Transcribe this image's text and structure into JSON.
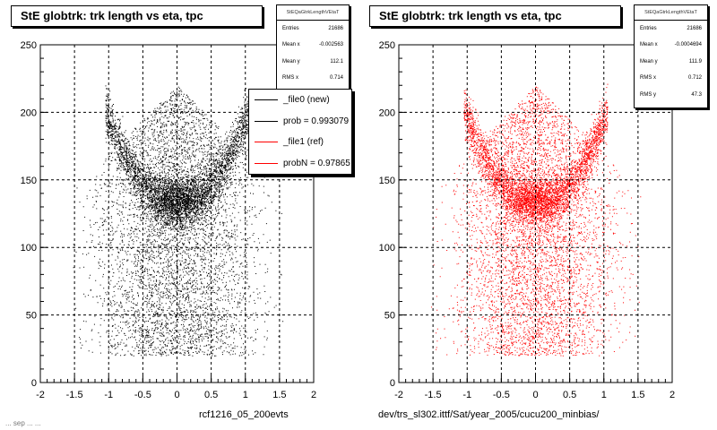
{
  "colors": {
    "series_new": "#000000",
    "series_ref": "#ff0000"
  },
  "panels": [
    {
      "title": "StE globtrk: trk length vs eta, tpc",
      "stats": {
        "header": "StEQaGtrkLengthVEtaT",
        "rows": [
          {
            "label": "Entries",
            "value": "21686"
          },
          {
            "label": "Mean x",
            "value": "-0.002563"
          },
          {
            "label": "Mean y",
            "value": "112.1"
          },
          {
            "label": "RMS x",
            "value": "0.714"
          }
        ]
      },
      "legend": [
        {
          "label": "_file0 (new)",
          "color": "#000000"
        },
        {
          "label": "prob = 0.993079",
          "color": "#000000"
        },
        {
          "label": "_file1 (ref)",
          "color": "#ff0000"
        },
        {
          "label": "probN = 0.97865",
          "color": "#ff0000"
        }
      ],
      "footer": "rcf1216_05_200evts",
      "footer_left": "... sep ... ...",
      "point_color": "#000000"
    },
    {
      "title": "StE globtrk: trk length vs eta, tpc",
      "stats": {
        "header": "StEQaGtrkLengthVEtaT",
        "rows": [
          {
            "label": "Entries",
            "value": "21686"
          },
          {
            "label": "Mean x",
            "value": "-0.0004694"
          },
          {
            "label": "Mean y",
            "value": "111.9"
          },
          {
            "label": "RMS x",
            "value": "0.712"
          },
          {
            "label": "RMS y",
            "value": "47.3"
          }
        ]
      },
      "footer": "dev/trs_sl302.ittf/Sat/year_2005/cucu200_minbias/",
      "point_color": "#ff0000"
    }
  ],
  "chart_data": [
    {
      "type": "scatter",
      "title": "StE globtrk: trk length vs eta, tpc",
      "xlim": [
        -2,
        2
      ],
      "ylim": [
        0,
        250
      ],
      "x_ticks": [
        "-2",
        "-1.5",
        "-1",
        "-0.5",
        "0",
        "0.5",
        "1",
        "1.5",
        "2"
      ],
      "y_ticks": [
        "0",
        "50",
        "100",
        "150",
        "200",
        "250"
      ],
      "grid": true,
      "series": [
        {
          "name": "_file0 (new)",
          "color": "#000000"
        }
      ],
      "entries": 21686,
      "mean_x": -0.002563,
      "mean_y": 112.1,
      "rms_x": 0.714
    },
    {
      "type": "scatter",
      "title": "StE globtrk: trk length vs eta, tpc",
      "xlim": [
        -2,
        2
      ],
      "ylim": [
        0,
        250
      ],
      "x_ticks": [
        "-2",
        "-1.5",
        "-1",
        "-0.5",
        "0",
        "0.5",
        "1",
        "1.5",
        "2"
      ],
      "y_ticks": [
        "0",
        "50",
        "100",
        "150",
        "200",
        "250"
      ],
      "grid": true,
      "series": [
        {
          "name": "_file1 (ref)",
          "color": "#ff0000"
        }
      ],
      "entries": 21686,
      "mean_x": -0.0004694,
      "mean_y": 111.9,
      "rms_x": 0.712,
      "rms_y": 47.3
    }
  ]
}
